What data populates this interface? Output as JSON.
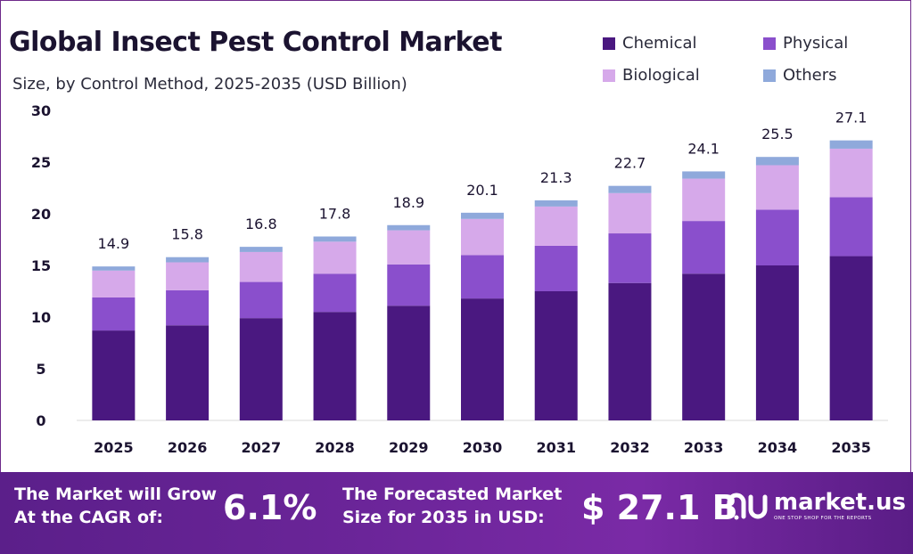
{
  "title": "Global Insect Pest Control Market",
  "subtitle": "Size, by Control Method, 2025-2035 (USD Billion)",
  "colors": {
    "chemical": "#4a1880",
    "physical": "#8a4fcc",
    "biological": "#d6a9ea",
    "others": "#8fa9db",
    "footer": "#6b2599"
  },
  "chart_data": {
    "type": "bar",
    "stacked": true,
    "categories": [
      "2025",
      "2026",
      "2027",
      "2028",
      "2029",
      "2030",
      "2031",
      "2032",
      "2033",
      "2034",
      "2035"
    ],
    "series": [
      {
        "name": "Chemical",
        "values": [
          8.7,
          9.2,
          9.9,
          10.5,
          11.1,
          11.8,
          12.5,
          13.3,
          14.2,
          15.0,
          15.9
        ]
      },
      {
        "name": "Physical",
        "values": [
          3.2,
          3.4,
          3.5,
          3.7,
          4.0,
          4.2,
          4.4,
          4.8,
          5.1,
          5.4,
          5.7
        ]
      },
      {
        "name": "Biological",
        "values": [
          2.6,
          2.7,
          2.9,
          3.1,
          3.3,
          3.5,
          3.8,
          3.9,
          4.1,
          4.3,
          4.7
        ]
      },
      {
        "name": "Others",
        "values": [
          0.4,
          0.5,
          0.5,
          0.5,
          0.5,
          0.6,
          0.6,
          0.7,
          0.7,
          0.8,
          0.8
        ]
      }
    ],
    "totals": [
      "14.9",
      "15.8",
      "16.8",
      "17.8",
      "18.9",
      "20.1",
      "21.3",
      "22.7",
      "24.1",
      "25.5",
      "27.1"
    ],
    "yticks": [
      0,
      5,
      10,
      15,
      20,
      25,
      30
    ],
    "ylim": [
      0,
      30
    ],
    "grid": false,
    "legend_position": "top-right"
  },
  "footer": {
    "cagr_label_1": "The Market will Grow",
    "cagr_label_2": "At the CAGR of:",
    "cagr_value": "6.1%",
    "forecast_label_1": "The Forecasted Market",
    "forecast_label_2": "Size for 2035 in USD:",
    "forecast_value": "$ 27.1 B",
    "brand_name": "market.us",
    "brand_tagline": "ONE STOP SHOP FOR THE REPORTS"
  }
}
